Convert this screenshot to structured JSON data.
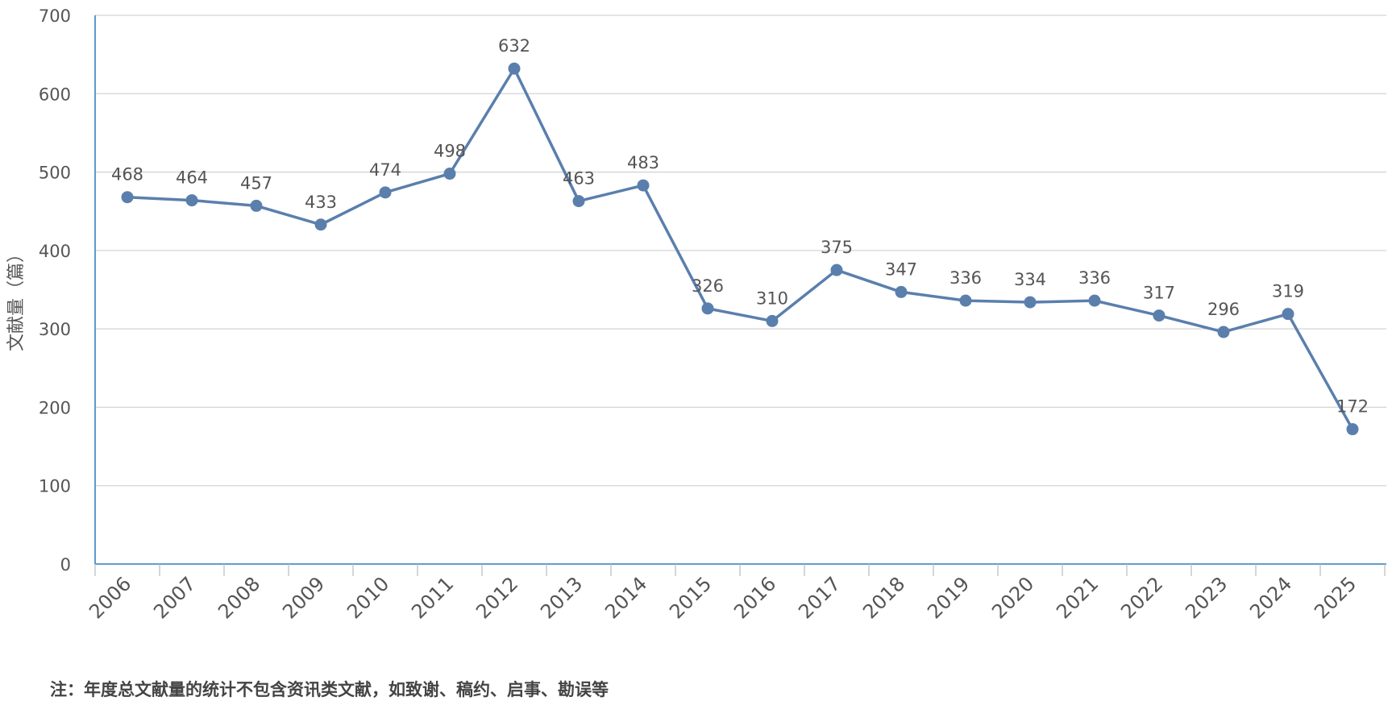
{
  "colors": {
    "series": "#5a7fad",
    "axis": "#4a90c8",
    "grid": "#d4d4d4",
    "text": "#555555"
  },
  "chart_data": {
    "type": "line",
    "title": "",
    "xlabel": "",
    "ylabel": "文献量（篇）",
    "ylim": [
      0,
      700
    ],
    "yticks": [
      0,
      100,
      200,
      300,
      400,
      500,
      600,
      700
    ],
    "grid": true,
    "legend": "none",
    "categories": [
      "2006",
      "2007",
      "2008",
      "2009",
      "2010",
      "2011",
      "2012",
      "2013",
      "2014",
      "2015",
      "2016",
      "2017",
      "2018",
      "2019",
      "2020",
      "2021",
      "2022",
      "2023",
      "2024",
      "2025"
    ],
    "series": [
      {
        "values": [
          468,
          464,
          457,
          433,
          474,
          498,
          632,
          463,
          483,
          326,
          310,
          375,
          347,
          336,
          334,
          336,
          317,
          296,
          319,
          172
        ]
      }
    ]
  },
  "footnote": "注：年度总文献量的统计不包含资讯类文献，如致谢、稿约、启事、勘误等"
}
